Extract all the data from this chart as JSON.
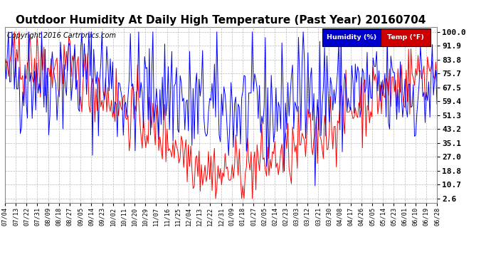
{
  "title": "Outdoor Humidity At Daily High Temperature (Past Year) 20160704",
  "copyright": "Copyright 2016 Cartronics.com",
  "yticks": [
    2.6,
    10.7,
    18.8,
    27.0,
    35.1,
    43.2,
    51.3,
    59.4,
    67.5,
    75.7,
    83.8,
    91.9,
    100.0
  ],
  "ylim": [
    0,
    103
  ],
  "legend_humidity_label": "Humidity (%)",
  "legend_temp_label": "Temp (°F)",
  "legend_humidity_bg": "#0000cc",
  "legend_temp_bg": "#cc0000",
  "line_humidity_color": "#0000ff",
  "line_temp_color": "#ff0000",
  "grid_color": "#bbbbbb",
  "background_color": "#ffffff",
  "title_fontsize": 11,
  "copyright_fontsize": 7,
  "tick_fontsize": 8,
  "n_points": 366,
  "xtick_dates": [
    "07/04",
    "07/13",
    "07/22",
    "07/31",
    "08/09",
    "08/18",
    "08/27",
    "09/05",
    "09/14",
    "09/23",
    "10/02",
    "10/11",
    "10/20",
    "10/29",
    "11/07",
    "11/16",
    "11/25",
    "12/04",
    "12/13",
    "12/22",
    "12/31",
    "01/09",
    "01/18",
    "01/27",
    "02/05",
    "02/14",
    "02/23",
    "03/03",
    "03/12",
    "03/21",
    "03/30",
    "04/08",
    "04/17",
    "04/26",
    "05/05",
    "05/14",
    "05/23",
    "06/01",
    "06/10",
    "06/19",
    "06/28"
  ]
}
